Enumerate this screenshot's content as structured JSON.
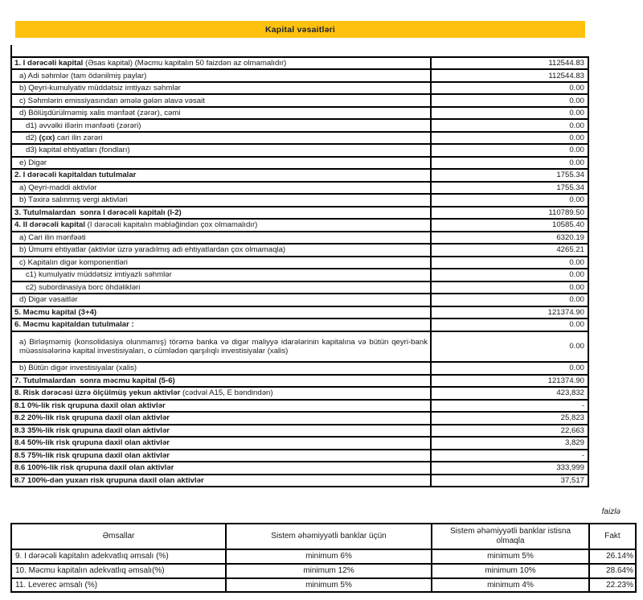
{
  "title": "Kapital vəsaitləri",
  "colors": {
    "accent_yellow": "#FEC10D",
    "title_text": "#1D2433",
    "border": "#000000"
  },
  "capital_table": {
    "rows": [
      {
        "strong": "1. I dərəcəli kapital",
        "post": " (Əsas kapital) (Məcmu kapitalın 50 faizdən az olmamalıdır)",
        "value": "112544.83",
        "indent": 0
      },
      {
        "pre": "a) Adi səhmlər (tam ödənilmiş paylar)",
        "value": "112544.83",
        "indent": 1
      },
      {
        "pre": "b) Qeyri-kumulyativ müddətsiz imtiyazı səhmlər",
        "value": "0.00",
        "indent": 1
      },
      {
        "pre": "c) Səhmlərin emissiyasından əmələ gələn əlavə vəsait",
        "value": "0.00",
        "indent": 1
      },
      {
        "pre": "d) Bölüşdürülməmiş xalis mənfəət (zərər), cəmi",
        "value": "0.00",
        "indent": 1
      },
      {
        "pre": "d1) əvvəlki illərin mənfəəti (zərəri)",
        "value": "0.00",
        "indent": 2
      },
      {
        "pre": "d2) ",
        "strong": "(çıx)",
        "post": " cari ilin zərəri",
        "value": "0.00",
        "indent": 2
      },
      {
        "pre": "d3) kapital ehtiyatları (fondları)",
        "value": "0.00",
        "indent": 2
      },
      {
        "pre": "e) Digər",
        "value": "0.00",
        "indent": 1
      },
      {
        "strong": "2. I dərəcəli kapitaldan tutulmalar",
        "value": "1755.34",
        "indent": 0
      },
      {
        "pre": "a) Qeyri-maddi aktivlər",
        "value": "1755.34",
        "indent": 1
      },
      {
        "pre": "b) Təxirə salınmış vergi aktivləri",
        "value": "0.00",
        "indent": 1
      },
      {
        "strong": "3. Tutulmalardan  sonra I dərəcəli kapitalı (I-2)",
        "value": "110789.50",
        "indent": 0
      },
      {
        "strong": "4. II dərəcəli kapital",
        "post": " (I dərəcəli kapitalın məbləğindən çox olmamalıdır)",
        "value": "10585.40",
        "indent": 0
      },
      {
        "pre": "a) Cari ilin mənfəəti",
        "value": "6320.19",
        "indent": 1
      },
      {
        "pre": "b) Ümumi ehtiyatlar (aktivlər üzrə yaradılmış adi ehtiyatlardan çox olmamaqla)",
        "value": "4265.21",
        "indent": 1
      },
      {
        "pre": "c) Kapitalın digər komponentləri",
        "value": "0.00",
        "indent": 1
      },
      {
        "pre": "c1) kumulyativ müddətsiz imtiyazlı səhmlər",
        "value": "0.00",
        "indent": 2
      },
      {
        "pre": "c2) subordinasiya borc öhdəlikləri",
        "value": "0.00",
        "indent": 2
      },
      {
        "pre": "d) Digər vəsaitlər",
        "value": "0.00",
        "indent": 1
      },
      {
        "strong": "5. Məcmu kapital (3+4)",
        "value": "121374.90",
        "indent": 0
      },
      {
        "strong": "6. Məcmu kapitaldan tutulmalar :",
        "value": "0.00",
        "indent": 0
      },
      {
        "pre": "a) Birləşməmiş (konsolidasiya olunmamış) törəmə banka və digər maliyyə idarələrinin kapitalına və bütün qeyri-bank müəssisələrinə kapital investisiyaları, o cümlədən qarşılıqlı investisiyalar (xalis)",
        "value": "0.00",
        "indent": 1,
        "tall": true
      },
      {
        "pre": "b) Bütün digər investisiyalar (xalis)",
        "value": "0.00",
        "indent": 1
      },
      {
        "strong": "7. Tutulmalardan  sonra məcmu kapital (5-6)",
        "value": "121374.90",
        "indent": 0
      },
      {
        "strong": "8. Risk dərəcəsi üzrə ölçülmüş yekun aktivlər",
        "post": " (cədvəl A15, E bəndindən)",
        "value": "423,832",
        "indent": 0
      },
      {
        "strong": "8.1 0%-lik risk qrupuna daxil olan aktivlər",
        "value": "-",
        "indent": 0
      },
      {
        "strong": "8.2 20%-lik risk qrupuna daxil olan aktivlər",
        "value": "25,823",
        "indent": 0
      },
      {
        "strong": "8.3 35%-lik risk qrupuna daxil olan aktivlər",
        "value": "22,663",
        "indent": 0
      },
      {
        "strong": "8.4 50%-lik risk qrupuna daxil olan aktivlər",
        "value": "3,829",
        "indent": 0
      },
      {
        "strong": "8.5 75%-lik risk qrupuna daxil olan aktivlər",
        "value": "-",
        "indent": 0
      },
      {
        "strong": "8.6 100%-lik risk qrupuna daxil olan aktivlər",
        "value": "333,999",
        "indent": 0
      },
      {
        "strong": "8.7 100%-dən yuxarı risk qrupuna daxil olan aktivlər",
        "value": "37,517",
        "indent": 0
      }
    ]
  },
  "ratios_table": {
    "note": "faizlə",
    "headers": [
      "Əmsallar",
      "Sistem əhəmiyyətli banklar üçün",
      "Sistem əhəmiyyətli banklar istisna olmaqla",
      "Fakt"
    ],
    "rows": [
      {
        "label": "9. I dərəcəli kapitalın adekvatlıq əmsalı (%)",
        "sys_banks": "minimum 6%",
        "non_sys_banks": "minimum 5%",
        "fact": "26.14%"
      },
      {
        "label": "10. Məcmu kapitalın adekvatlıq əmsalı(%)",
        "sys_banks": "minimum 12%",
        "non_sys_banks": "minimum 10%",
        "fact": "28.64%"
      },
      {
        "label": "11. Leverec əmsalı (%)",
        "sys_banks": "minimum 5%",
        "non_sys_banks": "minimum 4%",
        "fact": "22.23%"
      }
    ]
  }
}
